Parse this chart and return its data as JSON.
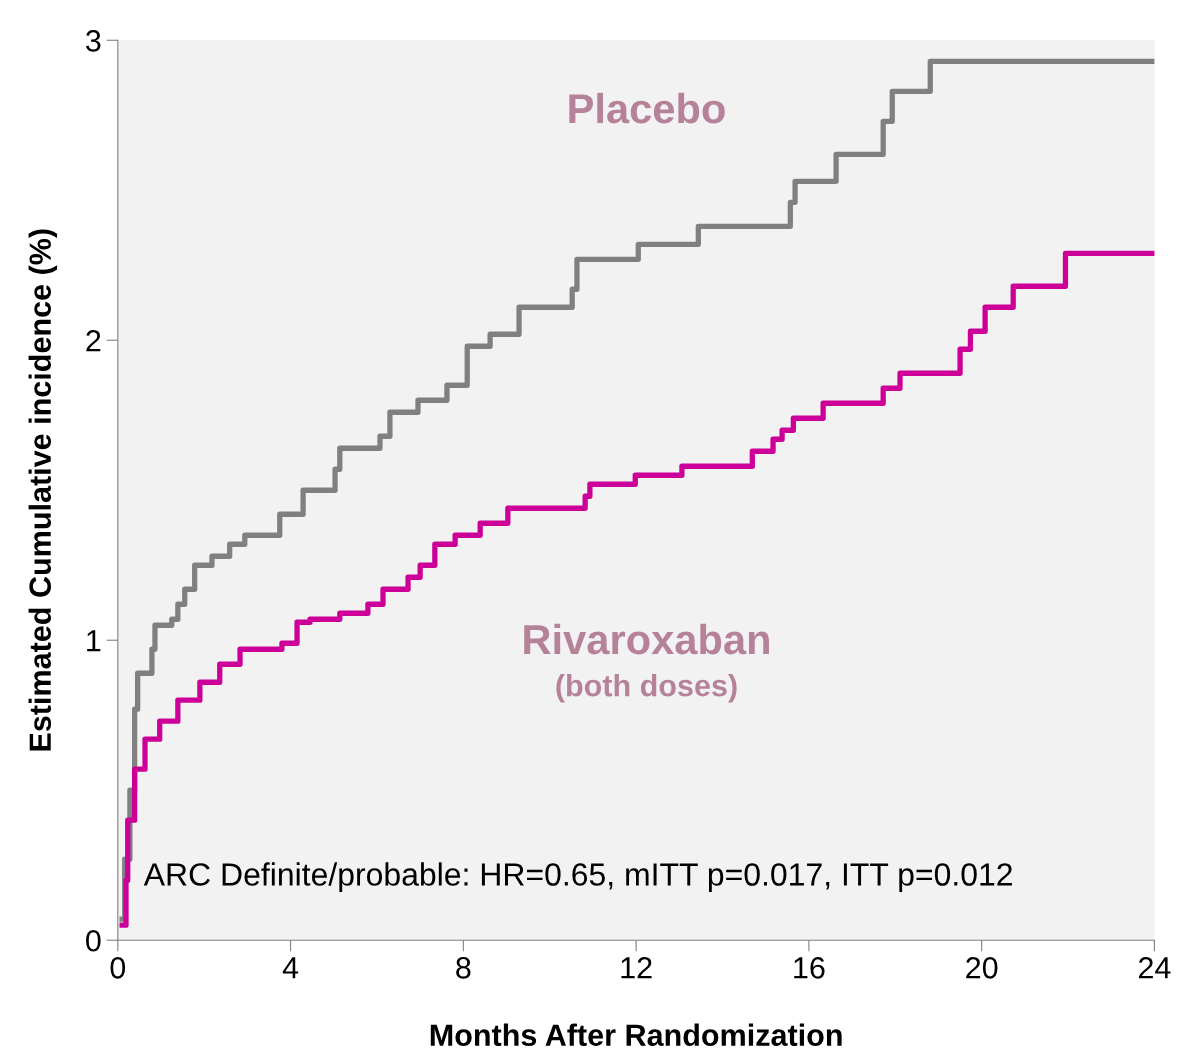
{
  "chart_data": {
    "type": "step",
    "xlabel": "Months After Randomization",
    "ylabel": "Estimated Cumulative incidence (%)",
    "xlim": [
      0,
      24
    ],
    "ylim": [
      0,
      3
    ],
    "xticks": [
      0,
      4,
      8,
      12,
      16,
      20,
      24
    ],
    "yticks": [
      0,
      1,
      2,
      3
    ],
    "grid": false,
    "legend": false,
    "marker": "none",
    "line_style": "solid",
    "series": [
      {
        "name": "Placebo",
        "color": "#808080",
        "x": [
          0.1,
          0.16,
          0.28,
          0.39,
          0.46,
          0.79,
          0.86,
          1.25,
          1.39,
          1.55,
          1.78,
          2.18,
          2.59,
          2.94,
          3.75,
          4.29,
          5.03,
          5.14,
          6.07,
          6.3,
          6.95,
          7.62,
          8.09,
          8.62,
          9.29,
          10.52,
          10.63,
          12.05,
          13.44,
          15.57,
          15.68,
          16.63,
          17.72,
          17.93,
          18.81,
          24
        ],
        "values": [
          0.07,
          0.27,
          0.5,
          0.77,
          0.89,
          0.97,
          1.05,
          1.07,
          1.12,
          1.17,
          1.25,
          1.28,
          1.32,
          1.35,
          1.42,
          1.5,
          1.57,
          1.64,
          1.68,
          1.76,
          1.8,
          1.85,
          1.98,
          2.02,
          2.11,
          2.17,
          2.27,
          2.32,
          2.38,
          2.46,
          2.53,
          2.62,
          2.73,
          2.83,
          2.93,
          2.93
        ]
      },
      {
        "name": "Rivaroxaban",
        "color": "#cc0099",
        "x": [
          0.1,
          0.19,
          0.23,
          0.39,
          0.63,
          0.97,
          1.39,
          1.9,
          2.36,
          2.83,
          3.8,
          4.15,
          4.45,
          5.14,
          5.79,
          6.14,
          6.72,
          7.0,
          7.34,
          7.81,
          8.39,
          9.03,
          10.82,
          10.93,
          11.98,
          13.06,
          14.69,
          15.17,
          15.38,
          15.64,
          16.33,
          17.72,
          18.11,
          19.5,
          19.74,
          20.08,
          20.73,
          21.94,
          24
        ],
        "values": [
          0.05,
          0.2,
          0.4,
          0.57,
          0.67,
          0.73,
          0.8,
          0.86,
          0.92,
          0.97,
          0.99,
          1.06,
          1.07,
          1.09,
          1.12,
          1.17,
          1.21,
          1.25,
          1.32,
          1.35,
          1.39,
          1.44,
          1.48,
          1.52,
          1.55,
          1.58,
          1.63,
          1.67,
          1.7,
          1.74,
          1.79,
          1.84,
          1.89,
          1.97,
          2.03,
          2.11,
          2.18,
          2.29,
          2.29
        ]
      }
    ],
    "annotations": [
      "(both doses)",
      "ARC Definite/probable: HR=0.65, mITT p=0.017, ITT p=0.012"
    ]
  }
}
